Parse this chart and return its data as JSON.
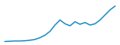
{
  "x": [
    0,
    1,
    2,
    3,
    4,
    5,
    6,
    7,
    8,
    9,
    10,
    11,
    12,
    13,
    14,
    15,
    16,
    17,
    18,
    19,
    20,
    21,
    22
  ],
  "y": [
    1.0,
    1.1,
    1.2,
    1.2,
    1.3,
    1.5,
    1.8,
    2.5,
    3.5,
    5.0,
    7.5,
    9.5,
    8.0,
    7.2,
    8.8,
    7.8,
    8.5,
    7.5,
    8.0,
    9.5,
    11.5,
    13.5,
    15.0
  ],
  "line_color": "#3399cc",
  "linewidth": 1.0,
  "background_color": "#ffffff",
  "ylim": [
    0.5,
    16.5
  ],
  "xlim": [
    -0.5,
    22.5
  ]
}
